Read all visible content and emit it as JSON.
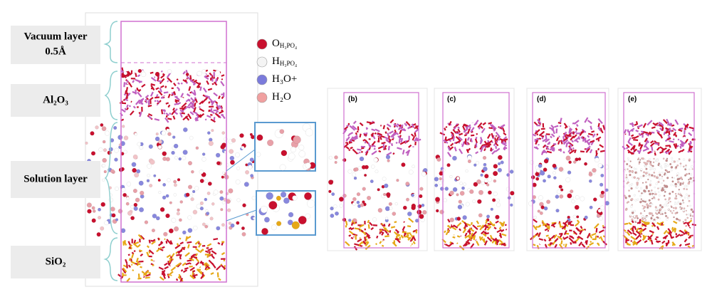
{
  "labels": {
    "vacuum": "Vacuum layer",
    "vacuum_size": "0.5Å",
    "alumina": "Al₂O₃",
    "solution": "Solution layer",
    "silica": "SiO₂"
  },
  "legend": [
    {
      "symbol": "O",
      "subscript": "H₃PO₄"
    },
    {
      "symbol": "H",
      "subscript": "H₃PO₄"
    },
    {
      "symbol": "H₃O+",
      "subscript": ""
    },
    {
      "symbol": "H₂O",
      "subscript": ""
    }
  ],
  "panels": [
    "(b)",
    "(c)",
    "(d)",
    "(e)"
  ]
}
